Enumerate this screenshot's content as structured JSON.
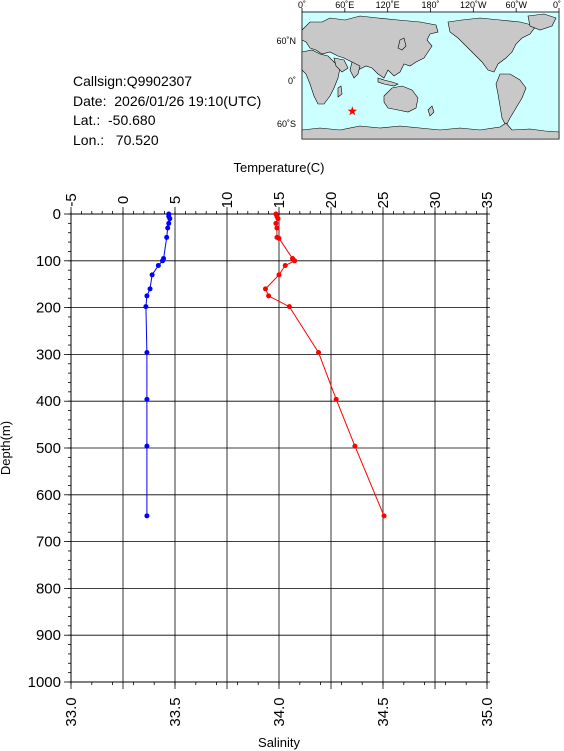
{
  "info": {
    "callsign": "Callsign:Q9902307",
    "date": "Date:  2026/01/26 19:10(UTC)",
    "lat": "Lat.:  -50.680",
    "lon": "Lon.:   70.520"
  },
  "map": {
    "top_labels": [
      "0˚",
      "60˚E",
      "120˚E",
      "180˚",
      "120˚W",
      "60˚W",
      "0˚"
    ],
    "lat_labels": [
      "60˚N",
      "0˚",
      "60˚S"
    ],
    "marker": {
      "lon": 70.52,
      "lat": -50.68,
      "color": "#ff0000",
      "symbol": "star"
    },
    "ocean_color": "#ccffff",
    "land_color": "#c8c8c8"
  },
  "chart_data": {
    "type": "line",
    "title": "",
    "ylabel": "Depth(m)",
    "ylim": [
      1000,
      0
    ],
    "yticks": [
      0,
      100,
      200,
      300,
      400,
      500,
      600,
      700,
      800,
      900,
      1000
    ],
    "temperature_axis": {
      "label": "Temperature(C)",
      "position": "top",
      "range": [
        -5,
        35
      ],
      "ticks": [
        -5,
        0,
        5,
        10,
        15,
        20,
        25,
        30,
        35
      ]
    },
    "salinity_axis": {
      "label": "Salinity",
      "position": "bottom",
      "range": [
        33.0,
        35.0
      ],
      "ticks": [
        "33.0",
        "33.5",
        "34.0",
        "34.5",
        "35.0"
      ]
    },
    "grid": true,
    "series": [
      {
        "axis": "temperature",
        "color": "#ff0000",
        "points": [
          [
            14.7,
            0
          ],
          [
            14.8,
            5
          ],
          [
            14.9,
            10
          ],
          [
            14.7,
            20
          ],
          [
            14.8,
            30
          ],
          [
            14.8,
            50
          ],
          [
            15.0,
            52
          ],
          [
            16.3,
            95
          ],
          [
            16.5,
            100
          ],
          [
            15.6,
            110
          ],
          [
            15.0,
            130
          ],
          [
            13.7,
            160
          ],
          [
            14.0,
            175
          ],
          [
            16.0,
            198
          ],
          [
            18.8,
            296
          ],
          [
            20.5,
            396
          ],
          [
            22.3,
            496
          ],
          [
            25.1,
            645
          ]
        ]
      },
      {
        "axis": "salinity",
        "color": "#0000ff",
        "points": [
          [
            33.47,
            0
          ],
          [
            33.47,
            5
          ],
          [
            33.475,
            10
          ],
          [
            33.47,
            20
          ],
          [
            33.465,
            30
          ],
          [
            33.46,
            50
          ],
          [
            33.445,
            95
          ],
          [
            33.44,
            100
          ],
          [
            33.42,
            110
          ],
          [
            33.39,
            130
          ],
          [
            33.38,
            160
          ],
          [
            33.365,
            175
          ],
          [
            33.36,
            198
          ],
          [
            33.365,
            296
          ],
          [
            33.365,
            396
          ],
          [
            33.365,
            496
          ],
          [
            33.365,
            645
          ]
        ]
      }
    ]
  }
}
